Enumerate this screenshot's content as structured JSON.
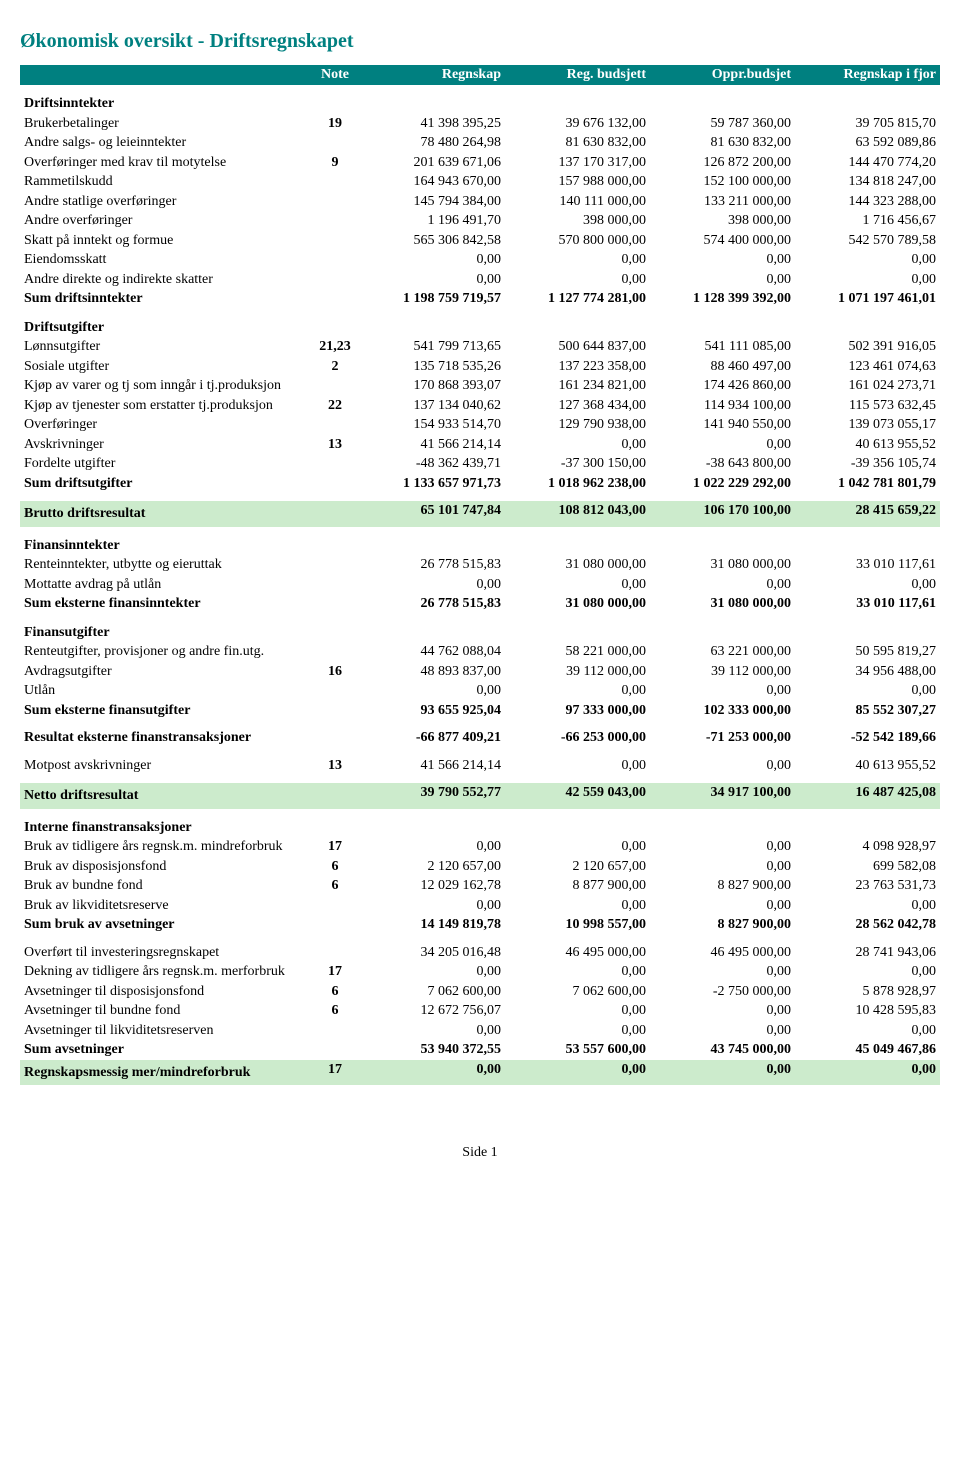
{
  "title": "Økonomisk oversikt - Driftsregnskapet",
  "colors": {
    "header_bg": "#008080",
    "header_fg": "#ffffff",
    "highlight_bg": "#ccebcc",
    "title_color": "#008080"
  },
  "columns": [
    "Note",
    "Regnskap",
    "Reg. budsjett",
    "Oppr.budsjet",
    "Regnskap i fjor"
  ],
  "footer": "Side 1",
  "rows": [
    {
      "type": "section",
      "label": "Driftsinntekter"
    },
    {
      "label": "Brukerbetalinger",
      "note": "19",
      "v": [
        "41 398 395,25",
        "39 676 132,00",
        "59 787 360,00",
        "39 705 815,70"
      ]
    },
    {
      "label": "Andre salgs- og leieinntekter",
      "v": [
        "78 480 264,98",
        "81 630 832,00",
        "81 630 832,00",
        "63 592 089,86"
      ]
    },
    {
      "label": "Overføringer med krav til motytelse",
      "note": "9",
      "v": [
        "201 639 671,06",
        "137 170 317,00",
        "126 872 200,00",
        "144 470 774,20"
      ]
    },
    {
      "label": "Rammetilskudd",
      "v": [
        "164 943 670,00",
        "157 988 000,00",
        "152 100 000,00",
        "134 818 247,00"
      ]
    },
    {
      "label": "Andre statlige overføringer",
      "v": [
        "145 794 384,00",
        "140 111 000,00",
        "133 211 000,00",
        "144 323 288,00"
      ]
    },
    {
      "label": "Andre overføringer",
      "v": [
        "1 196 491,70",
        "398 000,00",
        "398 000,00",
        "1 716 456,67"
      ]
    },
    {
      "label": "Skatt på inntekt og formue",
      "v": [
        "565 306 842,58",
        "570 800 000,00",
        "574 400 000,00",
        "542 570 789,58"
      ]
    },
    {
      "label": "Eiendomsskatt",
      "v": [
        "0,00",
        "0,00",
        "0,00",
        "0,00"
      ]
    },
    {
      "label": "Andre direkte og indirekte skatter",
      "v": [
        "0,00",
        "0,00",
        "0,00",
        "0,00"
      ]
    },
    {
      "type": "sum",
      "label": "Sum driftsinntekter",
      "v": [
        "1 198 759 719,57",
        "1 127 774 281,00",
        "1 128 399 392,00",
        "1 071 197 461,01"
      ]
    },
    {
      "type": "section",
      "label": "Driftsutgifter"
    },
    {
      "label": "Lønnsutgifter",
      "note": "21,23",
      "v": [
        "541 799 713,65",
        "500 644 837,00",
        "541 111 085,00",
        "502 391 916,05"
      ]
    },
    {
      "label": "Sosiale utgifter",
      "note": "2",
      "v": [
        "135 718 535,26",
        "137 223 358,00",
        "88 460 497,00",
        "123 461 074,63"
      ]
    },
    {
      "label": "Kjøp av varer og tj som inngår i tj.produksjon",
      "v": [
        "170 868 393,07",
        "161 234 821,00",
        "174 426 860,00",
        "161 024 273,71"
      ]
    },
    {
      "label": "Kjøp av tjenester som erstatter tj.produksjon",
      "note": "22",
      "v": [
        "137 134 040,62",
        "127 368 434,00",
        "114 934 100,00",
        "115 573 632,45"
      ]
    },
    {
      "label": "Overføringer",
      "v": [
        "154 933 514,70",
        "129 790 938,00",
        "141 940 550,00",
        "139 073 055,17"
      ]
    },
    {
      "label": "Avskrivninger",
      "note": "13",
      "v": [
        "41 566 214,14",
        "0,00",
        "0,00",
        "40 613 955,52"
      ]
    },
    {
      "label": "Fordelte utgifter",
      "v": [
        "-48 362 439,71",
        "-37 300 150,00",
        "-38 643 800,00",
        "-39 356 105,74"
      ]
    },
    {
      "type": "sum",
      "label": "Sum driftsutgifter",
      "v": [
        "1 133 657 971,73",
        "1 018 962 238,00",
        "1 022 229 292,00",
        "1 042 781 801,79"
      ]
    },
    {
      "type": "spacer"
    },
    {
      "type": "hl",
      "label": "Brutto driftsresultat",
      "v": [
        "65 101 747,84",
        "108 812 043,00",
        "106 170 100,00",
        "28 415 659,22"
      ]
    },
    {
      "type": "section",
      "label": "Finansinntekter"
    },
    {
      "label": "Renteinntekter, utbytte og eieruttak",
      "v": [
        "26 778 515,83",
        "31 080 000,00",
        "31 080 000,00",
        "33 010 117,61"
      ]
    },
    {
      "label": "Mottatte avdrag på utlån",
      "v": [
        "0,00",
        "0,00",
        "0,00",
        "0,00"
      ]
    },
    {
      "type": "sum",
      "label": "Sum eksterne finansinntekter",
      "v": [
        "26 778 515,83",
        "31 080 000,00",
        "31 080 000,00",
        "33 010 117,61"
      ]
    },
    {
      "type": "section",
      "label": "Finansutgifter"
    },
    {
      "label": "Renteutgifter, provisjoner og andre fin.utg.",
      "v": [
        "44 762 088,04",
        "58 221 000,00",
        "63 221 000,00",
        "50 595 819,27"
      ]
    },
    {
      "label": "Avdragsutgifter",
      "note": "16",
      "v": [
        "48 893 837,00",
        "39 112 000,00",
        "39 112 000,00",
        "34 956 488,00"
      ]
    },
    {
      "label": "Utlån",
      "v": [
        "0,00",
        "0,00",
        "0,00",
        "0,00"
      ]
    },
    {
      "type": "sum",
      "label": "Sum eksterne finansutgifter",
      "v": [
        "93 655 925,04",
        "97 333 000,00",
        "102 333 000,00",
        "85 552 307,27"
      ]
    },
    {
      "type": "spacer"
    },
    {
      "type": "sum",
      "label": "Resultat eksterne finanstransaksjoner",
      "v": [
        "-66 877 409,21",
        "-66 253 000,00",
        "-71 253 000,00",
        "-52 542 189,66"
      ]
    },
    {
      "type": "spacer"
    },
    {
      "label": "Motpost avskrivninger",
      "note": "13",
      "v": [
        "41 566 214,14",
        "0,00",
        "0,00",
        "40 613 955,52"
      ]
    },
    {
      "type": "spacer"
    },
    {
      "type": "hl",
      "label": "Netto driftsresultat",
      "v": [
        "39 790 552,77",
        "42 559 043,00",
        "34 917 100,00",
        "16 487 425,08"
      ]
    },
    {
      "type": "section",
      "label": "Interne finanstransaksjoner"
    },
    {
      "label": "Bruk av tidligere års regnsk.m. mindreforbruk",
      "note": "17",
      "v": [
        "0,00",
        "0,00",
        "0,00",
        "4 098 928,97"
      ]
    },
    {
      "label": "Bruk av disposisjonsfond",
      "note": "6",
      "v": [
        "2 120 657,00",
        "2 120 657,00",
        "0,00",
        "699 582,08"
      ]
    },
    {
      "label": "Bruk av bundne fond",
      "note": "6",
      "v": [
        "12 029 162,78",
        "8 877 900,00",
        "8 827 900,00",
        "23 763 531,73"
      ]
    },
    {
      "label": "Bruk av likviditetsreserve",
      "v": [
        "0,00",
        "0,00",
        "0,00",
        "0,00"
      ]
    },
    {
      "type": "sum",
      "label": "Sum bruk av avsetninger",
      "v": [
        "14 149 819,78",
        "10 998 557,00",
        "8 827 900,00",
        "28 562 042,78"
      ]
    },
    {
      "type": "spacer"
    },
    {
      "label": "Overført til investeringsregnskapet",
      "v": [
        "34 205 016,48",
        "46 495 000,00",
        "46 495 000,00",
        "28 741 943,06"
      ]
    },
    {
      "label": "Dekning av tidligere års regnsk.m. merforbruk",
      "note": "17",
      "v": [
        "0,00",
        "0,00",
        "0,00",
        "0,00"
      ]
    },
    {
      "label": "Avsetninger til disposisjonsfond",
      "note": "6",
      "v": [
        "7 062 600,00",
        "7 062 600,00",
        "-2 750 000,00",
        "5 878 928,97"
      ]
    },
    {
      "label": "Avsetninger til bundne fond",
      "note": "6",
      "v": [
        "12 672 756,07",
        "0,00",
        "0,00",
        "10 428 595,83"
      ]
    },
    {
      "label": "Avsetninger til likviditetsreserven",
      "v": [
        "0,00",
        "0,00",
        "0,00",
        "0,00"
      ]
    },
    {
      "type": "sum",
      "label": "Sum avsetninger",
      "v": [
        "53 940 372,55",
        "53 557 600,00",
        "43 745 000,00",
        "45 049 467,86"
      ]
    },
    {
      "type": "hl",
      "label": "Regnskapsmessig mer/mindreforbruk",
      "note": "17",
      "v": [
        "0,00",
        "0,00",
        "0,00",
        "0,00"
      ]
    }
  ]
}
